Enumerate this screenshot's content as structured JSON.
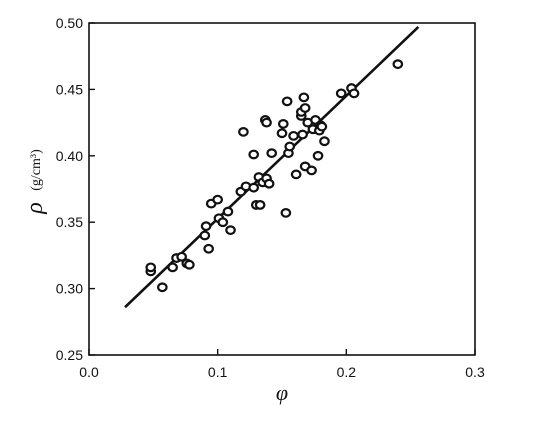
{
  "chart_data": {
    "type": "scatter",
    "xlabel": "φ",
    "ylabel": "ρ",
    "ylabel_unit": "(g/cm³)",
    "xlim": [
      0.0,
      0.3
    ],
    "ylim": [
      0.25,
      0.5
    ],
    "xticks": [
      0.0,
      0.1,
      0.2,
      0.3
    ],
    "xtick_labels": [
      "0.0",
      "0.1",
      "0.2",
      "0.3"
    ],
    "yticks": [
      0.25,
      0.3,
      0.35,
      0.4,
      0.45,
      0.5
    ],
    "ytick_labels": [
      "0.25",
      "0.30",
      "0.35",
      "0.40",
      "0.45",
      "0.50"
    ],
    "grid": false,
    "series": [
      {
        "points": [
          [
            0.048,
            0.313
          ],
          [
            0.048,
            0.316
          ],
          [
            0.057,
            0.301
          ],
          [
            0.065,
            0.316
          ],
          [
            0.068,
            0.323
          ],
          [
            0.072,
            0.324
          ],
          [
            0.076,
            0.319
          ],
          [
            0.078,
            0.318
          ],
          [
            0.09,
            0.34
          ],
          [
            0.091,
            0.347
          ],
          [
            0.093,
            0.33
          ],
          [
            0.095,
            0.364
          ],
          [
            0.1,
            0.367
          ],
          [
            0.101,
            0.353
          ],
          [
            0.104,
            0.35
          ],
          [
            0.108,
            0.358
          ],
          [
            0.11,
            0.344
          ],
          [
            0.118,
            0.373
          ],
          [
            0.12,
            0.418
          ],
          [
            0.122,
            0.377
          ],
          [
            0.128,
            0.376
          ],
          [
            0.128,
            0.401
          ],
          [
            0.13,
            0.363
          ],
          [
            0.132,
            0.384
          ],
          [
            0.133,
            0.363
          ],
          [
            0.135,
            0.38
          ],
          [
            0.137,
            0.427
          ],
          [
            0.138,
            0.425
          ],
          [
            0.138,
            0.383
          ],
          [
            0.14,
            0.379
          ],
          [
            0.142,
            0.402
          ],
          [
            0.15,
            0.417
          ],
          [
            0.151,
            0.424
          ],
          [
            0.153,
            0.357
          ],
          [
            0.154,
            0.441
          ],
          [
            0.155,
            0.402
          ],
          [
            0.156,
            0.407
          ],
          [
            0.159,
            0.415
          ],
          [
            0.161,
            0.386
          ],
          [
            0.165,
            0.43
          ],
          [
            0.165,
            0.433
          ],
          [
            0.166,
            0.416
          ],
          [
            0.167,
            0.444
          ],
          [
            0.168,
            0.436
          ],
          [
            0.168,
            0.392
          ],
          [
            0.17,
            0.425
          ],
          [
            0.173,
            0.389
          ],
          [
            0.174,
            0.42
          ],
          [
            0.176,
            0.427
          ],
          [
            0.178,
            0.4
          ],
          [
            0.179,
            0.419
          ],
          [
            0.18,
            0.423
          ],
          [
            0.181,
            0.422
          ],
          [
            0.183,
            0.411
          ],
          [
            0.196,
            0.447
          ],
          [
            0.204,
            0.451
          ],
          [
            0.206,
            0.447
          ],
          [
            0.24,
            0.469
          ]
        ]
      },
      {
        "type": "line",
        "x": [
          0.028,
          0.256
        ],
        "y": [
          0.286,
          0.497
        ]
      }
    ]
  }
}
